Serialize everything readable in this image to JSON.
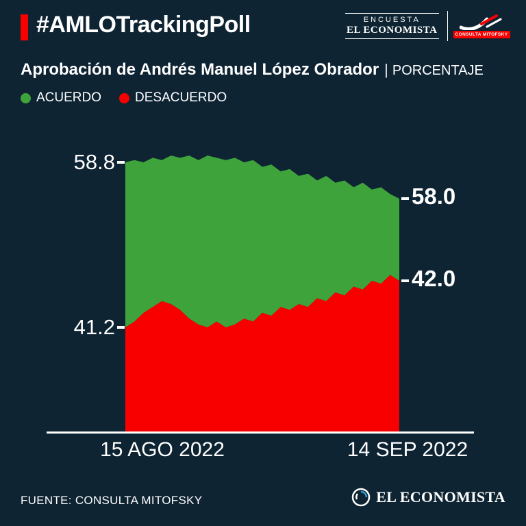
{
  "header": {
    "hashtag": "#AMLOTrackingPoll",
    "encuesta_label": "ENCUESTA",
    "economista_label": "EL ECONOMISTA",
    "mitofsky_label": "CONSULTA MITOFSKY"
  },
  "title": {
    "main": "Aprobación de Andrés Manuel López Obrador",
    "separator": "|",
    "sub": "PORCENTAJE"
  },
  "legend": [
    {
      "label": "ACUERDO",
      "color": "#3fa33c"
    },
    {
      "label": "DESACUERDO",
      "color": "#f80000"
    }
  ],
  "colors": {
    "background": "#0e2433",
    "accent_red": "#f80000",
    "green": "#3fa33c",
    "white": "#ffffff"
  },
  "chart_data": {
    "type": "area",
    "title": "Aprobación de Andrés Manuel López Obrador (Porcentaje)",
    "x_labels": [
      "15 AGO 2022",
      "14 SEP 2022"
    ],
    "grid": false,
    "legend_position": "top-left",
    "series": [
      {
        "name": "ACUERDO",
        "color": "#3fa33c",
        "start_label": "58.8",
        "end_label": "58.0",
        "values": [
          58.8,
          58.85,
          58.8,
          58.9,
          58.85,
          58.95,
          58.9,
          58.95,
          58.85,
          58.95,
          58.9,
          58.85,
          58.9,
          58.8,
          58.85,
          58.7,
          58.75,
          58.6,
          58.65,
          58.5,
          58.55,
          58.4,
          58.5,
          58.35,
          58.4,
          58.25,
          58.35,
          58.2,
          58.25,
          58.1,
          58.0
        ]
      },
      {
        "name": "DESACUERDO",
        "color": "#f80000",
        "start_label": "41.2",
        "end_label": "42.0",
        "values": [
          41.2,
          41.3,
          41.45,
          41.55,
          41.65,
          41.6,
          41.5,
          41.35,
          41.25,
          41.2,
          41.3,
          41.2,
          41.25,
          41.35,
          41.3,
          41.45,
          41.4,
          41.55,
          41.5,
          41.6,
          41.55,
          41.7,
          41.65,
          41.8,
          41.75,
          41.9,
          41.85,
          42.0,
          41.95,
          42.1,
          42.0
        ]
      }
    ]
  },
  "footer": {
    "source": "FUENTE: CONSULTA MITOFSKY",
    "brand": "EL ECONOMISTA"
  }
}
